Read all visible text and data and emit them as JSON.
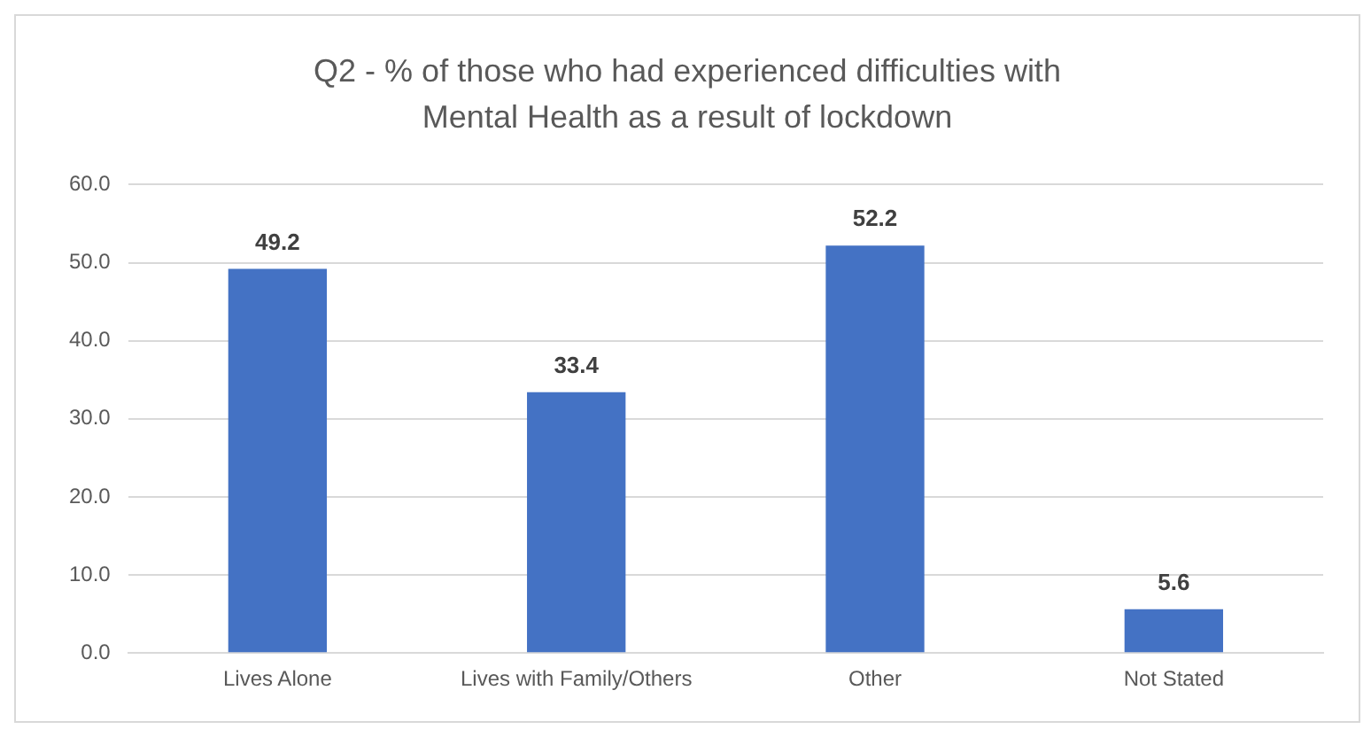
{
  "chart_data": {
    "type": "bar",
    "title": "Q2 - % of those who had experienced difficulties with Mental Health as a result of lockdown",
    "categories": [
      "Lives Alone",
      "Lives with Family/Others",
      "Other",
      "Not Stated"
    ],
    "values": [
      49.2,
      33.4,
      52.2,
      5.6
    ],
    "color": "#4472c4",
    "ylim": [
      0,
      60
    ],
    "yticks": [
      {
        "value": 0,
        "label": "0.0"
      },
      {
        "value": 10,
        "label": "10.0"
      },
      {
        "value": 20,
        "label": "20.0"
      },
      {
        "value": 30,
        "label": "30.0"
      },
      {
        "value": 40,
        "label": "40.0"
      },
      {
        "value": 50,
        "label": "50.0"
      },
      {
        "value": 60,
        "label": "60.0"
      }
    ],
    "grid": "y",
    "data_labels": true
  }
}
